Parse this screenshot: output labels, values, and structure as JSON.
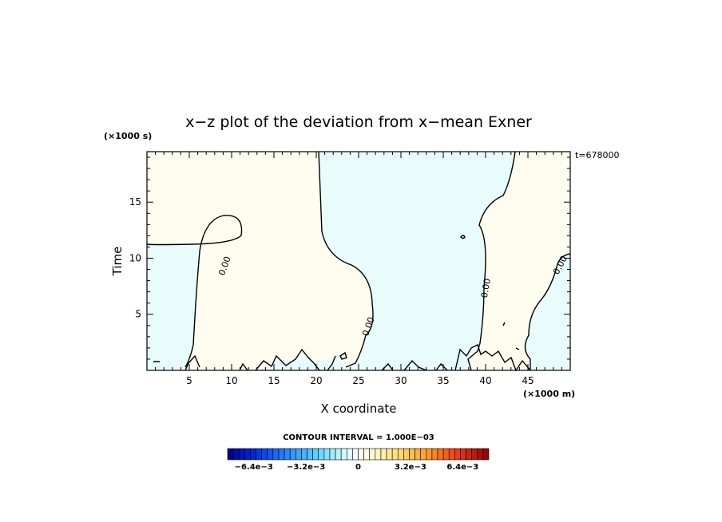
{
  "chart_data": {
    "type": "contour",
    "title": "x−z plot of the deviation from x−mean Exner",
    "xlabel": "X coordinate",
    "ylabel": "Time",
    "x_unit": "(×1000 m)",
    "y_unit": "(×1000 s)",
    "time_label": "t=678000",
    "xlim": [
      0,
      50
    ],
    "ylim": [
      0,
      19.5
    ],
    "x_ticks": [
      5,
      10,
      15,
      20,
      25,
      30,
      35,
      40,
      45
    ],
    "y_ticks": [
      5,
      10,
      15
    ],
    "contour_labels": [
      "0.00",
      "0.00",
      "0.00",
      "0.00"
    ],
    "contour_interval_text": "CONTOUR INTERVAL = 1.000E−03",
    "colorbar": {
      "tick_labels": [
        "−6.4e−3",
        "−3.2e−3",
        "0",
        "3.2e−3",
        "6.4e−3"
      ],
      "tick_values": [
        -0.0064,
        -0.0032,
        0,
        0.0032,
        0.0064
      ],
      "range": [
        -0.008,
        0.008
      ]
    },
    "colors": {
      "negative_fill": "#e8fcfc",
      "positive_fill": "#fefdf0"
    }
  }
}
